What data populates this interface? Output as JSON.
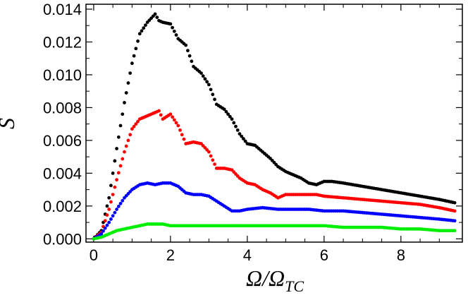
{
  "chart_data": {
    "type": "scatter",
    "title": "",
    "ylabel": "S",
    "xlabel": {
      "main": "Ω/Ω",
      "subscript": "TC"
    },
    "xlim": [
      -0.2,
      9.6
    ],
    "ylim": [
      -0.0002,
      0.0143
    ],
    "xticks": [
      0,
      2,
      4,
      6,
      8
    ],
    "xtick_labels": [
      "0",
      "2",
      "4",
      "6",
      "8"
    ],
    "yticks": [
      0.0,
      0.002,
      0.004,
      0.006,
      0.008,
      0.01,
      0.012,
      0.014
    ],
    "ytick_labels": [
      "0.000",
      "0.002",
      "0.004",
      "0.006",
      "0.008",
      "0.010",
      "0.012",
      "0.014"
    ],
    "grid": false,
    "legend": "none",
    "series": [
      {
        "color": "#000000",
        "x": [
          0,
          0.2,
          0.4,
          0.6,
          0.8,
          1.0,
          1.2,
          1.4,
          1.6,
          1.7,
          1.8,
          2.0,
          2.2,
          2.4,
          2.6,
          2.8,
          3.0,
          3.2,
          3.4,
          3.6,
          3.8,
          4.0,
          4.2,
          4.4,
          4.6,
          4.8,
          5.0,
          5.2,
          5.4,
          5.6,
          5.8,
          6.0,
          6.2,
          6.5,
          7.0,
          7.5,
          8.0,
          8.5,
          9.0,
          9.4
        ],
        "y": [
          0,
          0.0005,
          0.0025,
          0.0055,
          0.0083,
          0.0107,
          0.0125,
          0.0132,
          0.0137,
          0.0133,
          0.0132,
          0.0131,
          0.0122,
          0.0118,
          0.0105,
          0.0101,
          0.0094,
          0.0082,
          0.0079,
          0.0073,
          0.0064,
          0.0058,
          0.0057,
          0.0053,
          0.0049,
          0.0044,
          0.0041,
          0.0039,
          0.0037,
          0.0034,
          0.0033,
          0.0035,
          0.0035,
          0.0034,
          0.0032,
          0.003,
          0.0028,
          0.0026,
          0.0024,
          0.0022
        ]
      },
      {
        "color": "#ff0000",
        "x": [
          0,
          0.2,
          0.4,
          0.6,
          0.8,
          1.0,
          1.2,
          1.4,
          1.6,
          1.7,
          1.8,
          2.0,
          2.2,
          2.4,
          2.6,
          2.8,
          3.0,
          3.2,
          3.4,
          3.6,
          3.8,
          4.0,
          4.2,
          4.4,
          4.6,
          4.8,
          5.0,
          5.2,
          5.4,
          5.6,
          5.8,
          6.0,
          6.5,
          7.0,
          7.5,
          8.0,
          8.5,
          9.0,
          9.4
        ],
        "y": [
          0,
          0.0004,
          0.0018,
          0.0036,
          0.0053,
          0.0067,
          0.0073,
          0.0075,
          0.0077,
          0.0078,
          0.0073,
          0.0076,
          0.0069,
          0.0058,
          0.0059,
          0.0058,
          0.0053,
          0.0043,
          0.0043,
          0.0042,
          0.0037,
          0.0034,
          0.0033,
          0.003,
          0.0028,
          0.0025,
          0.0027,
          0.0027,
          0.0027,
          0.0027,
          0.0027,
          0.0026,
          0.0025,
          0.0024,
          0.0023,
          0.0022,
          0.0021,
          0.0019,
          0.0017
        ]
      },
      {
        "color": "#0000ff",
        "x": [
          0,
          0.2,
          0.4,
          0.6,
          0.8,
          1.0,
          1.2,
          1.4,
          1.6,
          1.8,
          2.0,
          2.2,
          2.4,
          2.6,
          2.8,
          3.0,
          3.2,
          3.4,
          3.6,
          3.8,
          4.0,
          4.4,
          4.8,
          5.2,
          5.6,
          6.0,
          6.5,
          7.0,
          7.5,
          8.0,
          8.5,
          9.0,
          9.4
        ],
        "y": [
          0,
          0.0003,
          0.001,
          0.0018,
          0.0025,
          0.003,
          0.0033,
          0.0034,
          0.0033,
          0.0034,
          0.0034,
          0.0032,
          0.0028,
          0.0027,
          0.0027,
          0.0026,
          0.0023,
          0.002,
          0.0017,
          0.0017,
          0.0018,
          0.0019,
          0.0018,
          0.0018,
          0.0018,
          0.0017,
          0.0017,
          0.0016,
          0.0015,
          0.0014,
          0.0013,
          0.0012,
          0.0011
        ]
      },
      {
        "color": "#00ee00",
        "x": [
          0,
          0.2,
          0.4,
          0.6,
          0.8,
          1.0,
          1.2,
          1.4,
          1.6,
          1.8,
          2.0,
          2.4,
          2.8,
          3.0,
          3.5,
          4.0,
          4.5,
          5.0,
          5.5,
          6.0,
          6.5,
          7.0,
          7.5,
          8.0,
          8.5,
          9.0,
          9.4
        ],
        "y": [
          0,
          0.0001,
          0.0003,
          0.0005,
          0.0006,
          0.0007,
          0.0008,
          0.0009,
          0.0009,
          0.0009,
          0.0008,
          0.0008,
          0.0008,
          0.0008,
          0.0008,
          0.0008,
          0.0008,
          0.0008,
          0.0008,
          0.0008,
          0.0007,
          0.0007,
          0.0007,
          0.0006,
          0.0006,
          0.0005,
          0.0005
        ]
      }
    ]
  }
}
